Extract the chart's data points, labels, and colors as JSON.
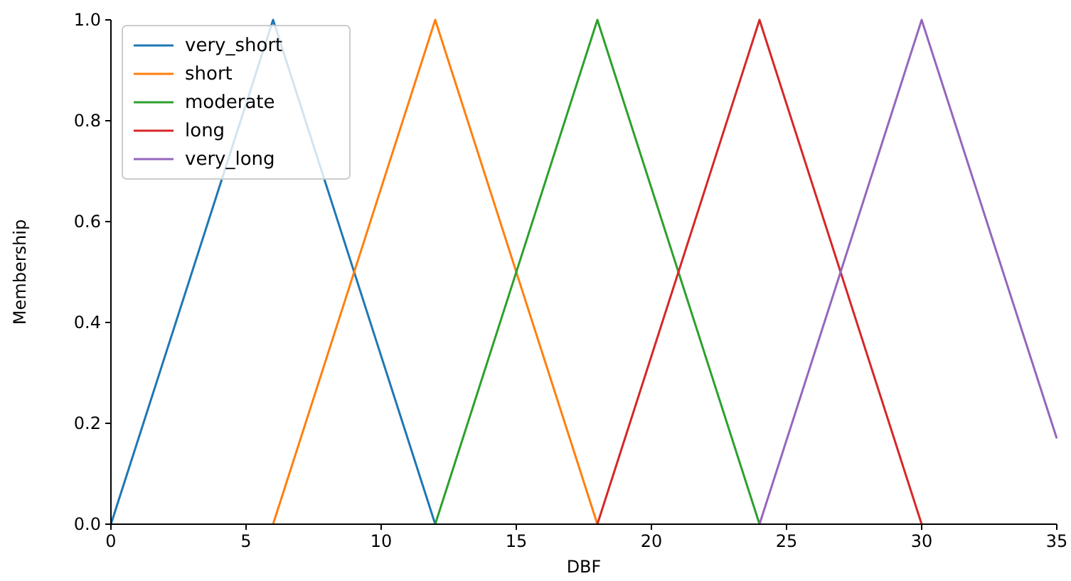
{
  "chart_data": {
    "type": "line",
    "xlabel": "DBF",
    "ylabel": "Membership",
    "xlim": [
      0,
      35
    ],
    "ylim": [
      0,
      1.0
    ],
    "xticks": [
      0,
      5,
      10,
      15,
      20,
      25,
      30,
      35
    ],
    "yticks": [
      {
        "value": 0,
        "label": "0.0"
      },
      {
        "value": 0.2,
        "label": "0.2"
      },
      {
        "value": 0.4,
        "label": "0.4"
      },
      {
        "value": 0.6,
        "label": "0.6"
      },
      {
        "value": 0.8,
        "label": "0.8"
      },
      {
        "value": 1,
        "label": "1.0"
      }
    ],
    "grid": false,
    "legend": "top left",
    "marker": "none",
    "line_style": "solid",
    "series": [
      {
        "name": "very_short",
        "color": "#1f77b4",
        "x": [
          0,
          6,
          12
        ],
        "values": [
          0,
          1,
          0
        ]
      },
      {
        "name": "short",
        "color": "#ff7f0e",
        "x": [
          6,
          12,
          18
        ],
        "values": [
          0,
          1,
          0
        ]
      },
      {
        "name": "moderate",
        "color": "#2ca02c",
        "x": [
          12,
          18,
          24
        ],
        "values": [
          0,
          1,
          0
        ]
      },
      {
        "name": "long",
        "color": "#d62728",
        "x": [
          18,
          24,
          30
        ],
        "values": [
          0,
          1,
          0
        ]
      },
      {
        "name": "very_long",
        "color": "#9467bd",
        "x": [
          24,
          30,
          35
        ],
        "values": [
          0,
          1,
          0.17
        ]
      }
    ]
  }
}
